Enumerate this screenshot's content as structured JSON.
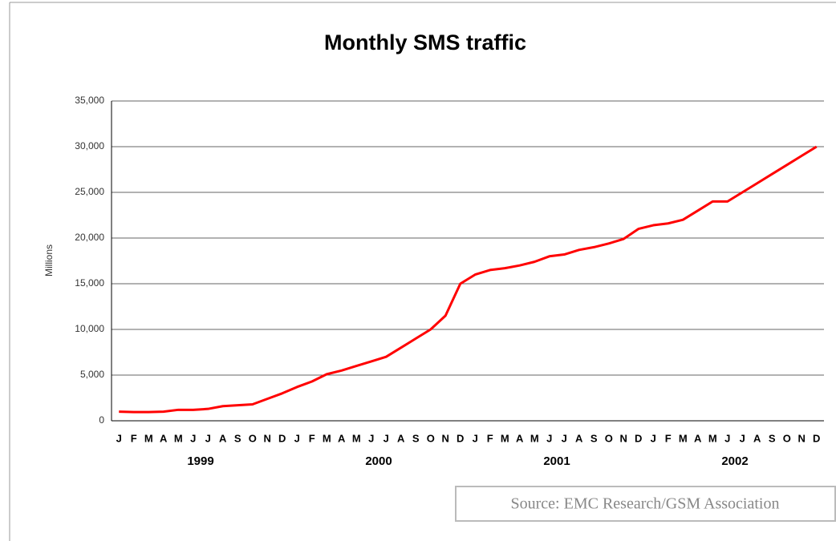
{
  "chart_data": {
    "type": "line",
    "title": "Monthly SMS traffic",
    "y_label": "Millions",
    "source": "Source: EMC Research/GSM Association",
    "categories": [
      "J",
      "F",
      "M",
      "A",
      "M",
      "J",
      "J",
      "A",
      "S",
      "O",
      "N",
      "D",
      "J",
      "F",
      "M",
      "A",
      "M",
      "J",
      "J",
      "A",
      "S",
      "O",
      "N",
      "D",
      "J",
      "F",
      "M",
      "A",
      "M",
      "J",
      "J",
      "A",
      "S",
      "O",
      "N",
      "D",
      "J",
      "F",
      "M",
      "A",
      "M",
      "J",
      "J",
      "A",
      "S",
      "O",
      "N",
      "D"
    ],
    "years": [
      "1999",
      "2000",
      "2001",
      "2002"
    ],
    "series": [
      {
        "name": "SMS traffic",
        "color": "#ff0000",
        "values": [
          1000,
          950,
          950,
          1000,
          1200,
          1200,
          1300,
          1600,
          1700,
          1800,
          2400,
          3000,
          3700,
          4300,
          5100,
          5500,
          6000,
          6500,
          7000,
          8000,
          9000,
          10000,
          11500,
          15000,
          16000,
          16500,
          16700,
          17000,
          17400,
          18000,
          18200,
          18700,
          19000,
          19400,
          19900,
          21000,
          21400,
          21600,
          22000,
          23000,
          24000,
          24000,
          25000,
          26000,
          27000,
          28000,
          29000,
          30000
        ]
      }
    ],
    "ylim": [
      0,
      35000
    ],
    "yticks": [
      0,
      {
        "value": 5000,
        "label": "5,000"
      },
      {
        "value": 10000,
        "label": "10,000"
      },
      {
        "value": 15000,
        "label": "15,000"
      },
      {
        "value": 20000,
        "label": "20,000"
      },
      {
        "value": 25000,
        "label": "25,000"
      },
      {
        "value": 30000,
        "label": "30,000"
      },
      {
        "value": 35000,
        "label": "35,000"
      }
    ],
    "grid": true
  }
}
